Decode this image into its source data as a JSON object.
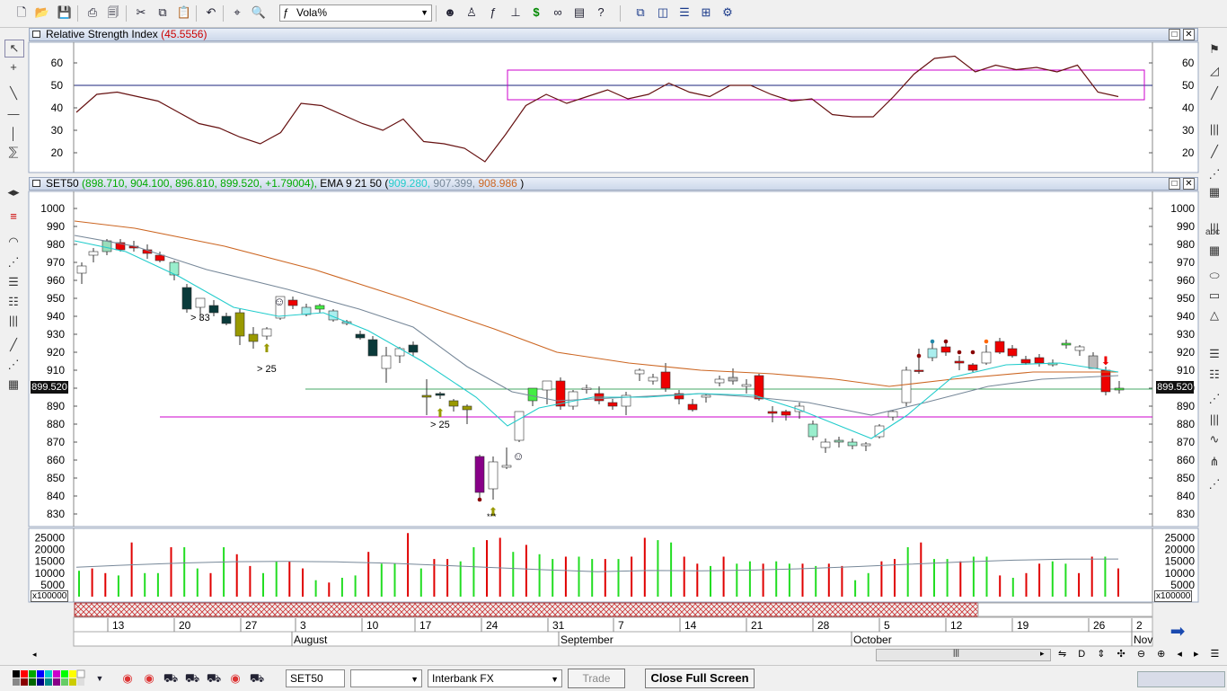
{
  "toolbar": {
    "indicator_select": "Vola%",
    "icons": [
      "new-icon",
      "open-icon",
      "save-icon",
      "print-icon",
      "print-preview-icon",
      "cut-icon",
      "copy-icon",
      "paste-icon",
      "undo-icon",
      "crosshair-icon",
      "zoom-icon",
      "indicator-icon",
      "person-icon",
      "function-icon",
      "tree-icon",
      "dollar-icon",
      "binoculars-icon",
      "form-icon",
      "help-icon",
      "window-cascade-icon",
      "tile-vertical-icon",
      "tile-horizontal-icon",
      "grid-icon",
      "settings-icon"
    ]
  },
  "rsi_panel": {
    "title": "Relative Strength Index",
    "value": "(45.5556)",
    "y_ticks": [
      "60",
      "50",
      "40",
      "30",
      "20"
    ]
  },
  "price_panel": {
    "symbol": "SET50",
    "ohlc": "(898.710, 904.100, 896.810, 899.520, +1.79004),",
    "ema_label": "EMA 9 21 50",
    "ema_open": "(",
    "ema9": "909.280,",
    "ema21": "907.399,",
    "ema50": "908.986",
    "ema_close": ")",
    "last_price": "899.520",
    "y_ticks": [
      "1000",
      "990",
      "980",
      "970",
      "960",
      "950",
      "940",
      "930",
      "920",
      "910",
      "900",
      "890",
      "880",
      "870",
      "860",
      "850",
      "840",
      "830"
    ],
    "annotations": [
      "> 33",
      "> 25",
      "> 25",
      "***"
    ]
  },
  "volume_panel": {
    "y_ticks": [
      "25000",
      "20000",
      "15000",
      "10000",
      "5000"
    ],
    "multiplier": "x100000"
  },
  "x_axis": {
    "days": [
      "13",
      "20",
      "27",
      "3",
      "10",
      "17",
      "24",
      "31",
      "7",
      "14",
      "21",
      "28",
      "5",
      "12",
      "19",
      "26",
      "2"
    ],
    "months": [
      "August",
      "September",
      "October",
      "Nov"
    ]
  },
  "colors": {
    "up": "#22dd22",
    "down": "#e00000",
    "ema9": "#22cccc",
    "ema21": "#778899",
    "ema50": "#cc6622",
    "rsi": "#661111",
    "magenta": "#cc00cc"
  },
  "statusbar": {
    "symbol": "SET50",
    "feed": "Interbank FX",
    "trade_label": "Trade",
    "close_full_screen": "Close Full Screen"
  },
  "chart_data": {
    "type": "line",
    "title": "",
    "series": [
      {
        "name": "Relative Strength Index",
        "values": [
          38,
          46,
          47,
          45,
          43,
          38,
          33,
          31,
          27,
          24,
          29,
          42,
          41,
          37,
          33,
          30,
          35,
          25,
          24,
          22,
          16,
          28,
          41,
          46,
          42,
          45,
          48,
          44,
          46,
          51,
          47,
          45,
          50,
          50,
          46,
          43,
          44,
          37,
          36,
          36,
          45,
          55,
          62,
          63,
          56,
          59,
          57,
          58,
          56,
          59,
          47,
          45
        ]
      }
    ],
    "ylim": [
      10,
      70
    ]
  }
}
